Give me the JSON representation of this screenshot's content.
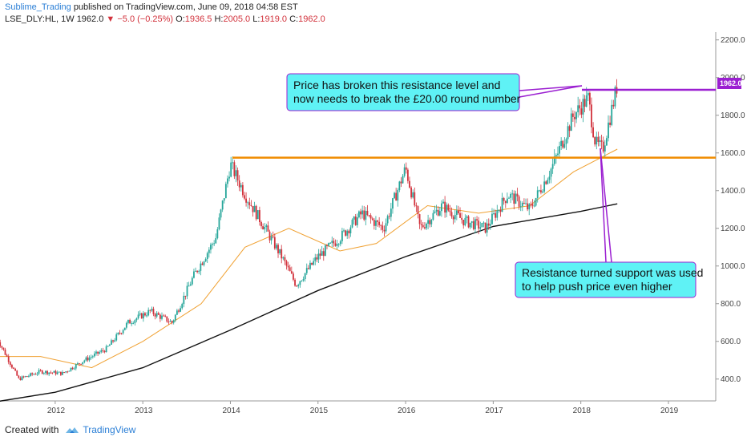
{
  "header": {
    "author": "Sublime_Trading",
    "published": "published on TradingView.com, June 09, 2018 04:58 EST",
    "symbol": "LSE_DLY:HL, 1W",
    "last": "1962.0",
    "down_arrow": "▼",
    "change": "−5.0 (−0.25%)",
    "o_label": "O:",
    "o": "1936.5",
    "h_label": "H:",
    "h": "2005.0",
    "l_label": "L:",
    "l": "1919.0",
    "c_label": "C:",
    "c": "1962.0"
  },
  "footer": {
    "created_with": "Created with",
    "brand": "TradingView",
    "logo_icon": "tradingview-logo-icon"
  },
  "colors": {
    "up": "#26a69a",
    "down": "#d2323c",
    "ma50": "#f0a030",
    "ma200": "#111111",
    "orange_line": "#f08c00",
    "purple_line": "#9b1fd1",
    "callout_bg": "#5ff2f5",
    "callout_border": "#9b1fd1",
    "price_label_bg": "#9b1fd1"
  },
  "chart_data": {
    "type": "candlestick",
    "interval": "1W",
    "x_ticks": [
      "2012",
      "2013",
      "2014",
      "2015",
      "2016",
      "2017",
      "2018",
      "2019"
    ],
    "y_ticks": [
      "400.0",
      "600.0",
      "800.0",
      "1000.0",
      "1200.0",
      "1400.0",
      "1600.0",
      "1800.0",
      "2000.0",
      "2200.0"
    ],
    "ylim": [
      250,
      2250
    ],
    "last_price_label": "1962.0",
    "price_path": [
      [
        "2011-05",
        620
      ],
      [
        "2011-08",
        400
      ],
      [
        "2011-11",
        440
      ],
      [
        "2012-02",
        430
      ],
      [
        "2012-05",
        500
      ],
      [
        "2012-08",
        560
      ],
      [
        "2012-11",
        700
      ],
      [
        "2013-02",
        760
      ],
      [
        "2013-05",
        700
      ],
      [
        "2013-08",
        950
      ],
      [
        "2013-11",
        1150
      ],
      [
        "2014-01",
        1540
      ],
      [
        "2014-03",
        1380
      ],
      [
        "2014-05",
        1250
      ],
      [
        "2014-08",
        1050
      ],
      [
        "2014-10",
        900
      ],
      [
        "2015-01",
        1050
      ],
      [
        "2015-04",
        1150
      ],
      [
        "2015-07",
        1280
      ],
      [
        "2015-10",
        1200
      ],
      [
        "2016-01",
        1520
      ],
      [
        "2016-03",
        1200
      ],
      [
        "2016-06",
        1320
      ],
      [
        "2016-09",
        1240
      ],
      [
        "2016-12",
        1200
      ],
      [
        "2017-03",
        1380
      ],
      [
        "2017-06",
        1300
      ],
      [
        "2017-09",
        1520
      ],
      [
        "2017-12",
        1800
      ],
      [
        "2018-02",
        1890
      ],
      [
        "2018-03",
        1650
      ],
      [
        "2018-04",
        1620
      ],
      [
        "2018-06",
        1962
      ]
    ],
    "ma50": [
      [
        "2011-05",
        520
      ],
      [
        "2011-11",
        520
      ],
      [
        "2012-06",
        460
      ],
      [
        "2013-01",
        600
      ],
      [
        "2013-09",
        800
      ],
      [
        "2014-03",
        1100
      ],
      [
        "2014-09",
        1200
      ],
      [
        "2015-04",
        1080
      ],
      [
        "2015-09",
        1120
      ],
      [
        "2016-04",
        1320
      ],
      [
        "2016-11",
        1280
      ],
      [
        "2017-06",
        1320
      ],
      [
        "2017-12",
        1500
      ],
      [
        "2018-06",
        1620
      ]
    ],
    "ma200": [
      [
        "2011-05",
        280
      ],
      [
        "2012-01",
        330
      ],
      [
        "2013-01",
        460
      ],
      [
        "2014-01",
        660
      ],
      [
        "2015-01",
        870
      ],
      [
        "2016-01",
        1050
      ],
      [
        "2017-01",
        1210
      ],
      [
        "2018-01",
        1290
      ],
      [
        "2018-06",
        1330
      ]
    ],
    "horizontal_lines": [
      {
        "level": 1575,
        "color": "orange"
      },
      {
        "level": 1935,
        "color": "purple"
      }
    ],
    "annotations": [
      {
        "text": [
          "Price has broken this resistance level and",
          "now needs to break the £20.00 round number"
        ]
      },
      {
        "text": [
          "Resistance turned support was used",
          "to help push price even higher"
        ]
      }
    ]
  }
}
